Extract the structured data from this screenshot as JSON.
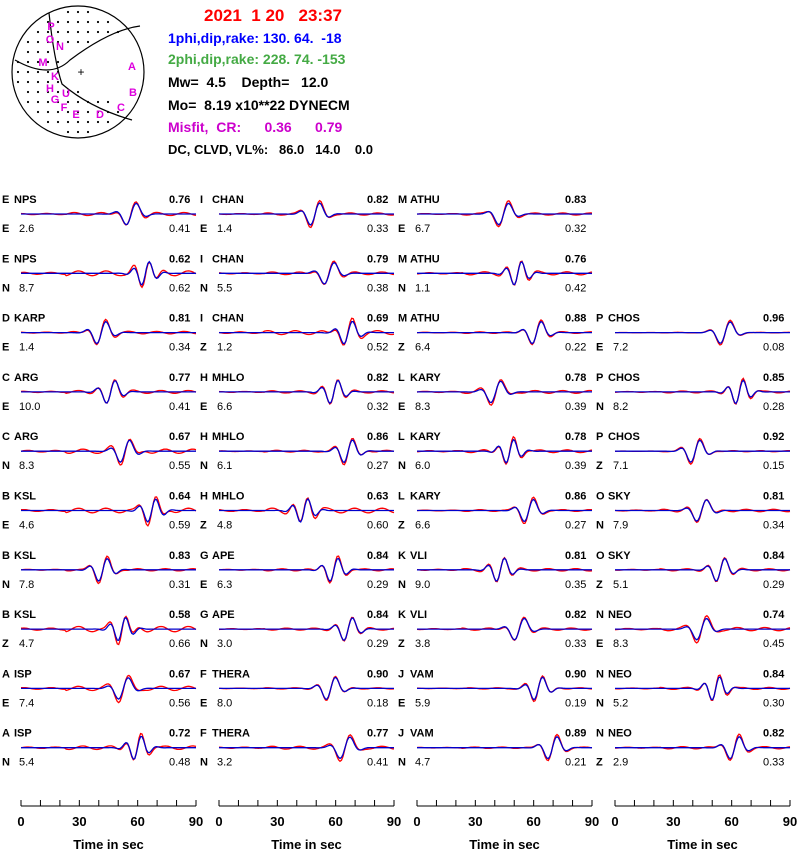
{
  "header": {
    "origin": "2021  1 20   23:37",
    "plane1": "1phi,dip,rake: 130. 64.  -18",
    "plane2": "2phi,dip,rake: 228. 74. -153",
    "mw_depth": "Mw=  4.5    Depth=   12.0",
    "mo": "Mo=  8.19 x10**22 DYNECM",
    "misfit": "Misfit,  CR:      0.36      0.79",
    "dc": "DC, CLVD, VL%:   86.0   14.0    0.0"
  },
  "colors": {
    "observed": "#ff0000",
    "synthetic": "#0000cc",
    "title": "#ff0000",
    "plane1": "#0000ff",
    "plane2": "#44aa44",
    "misfit": "#cc00cc",
    "station_letter": "#dd00dd"
  },
  "beachball": {
    "station_letters": [
      "P",
      "O",
      "N",
      "M",
      "K",
      "H",
      "G",
      "U",
      "F",
      "E",
      "D",
      "C",
      "B",
      "A"
    ]
  },
  "chart_data": {
    "type": "line",
    "description": "waveform fits, observed vs synthetic",
    "x_axis": {
      "label": "Time  in sec",
      "ticks": [
        0,
        30,
        60,
        90
      ],
      "range": [
        0,
        90
      ]
    },
    "columns": [
      [
        {
          "letter": "E",
          "station": "NPS",
          "comp": "E",
          "dist": "2.6",
          "cc": "0.76",
          "misfit": "0.41"
        },
        {
          "letter": "E",
          "station": "NPS",
          "comp": "N",
          "dist": "8.7",
          "cc": "0.62",
          "misfit": "0.62"
        },
        {
          "letter": "D",
          "station": "KARP",
          "comp": "E",
          "dist": "1.4",
          "cc": "0.81",
          "misfit": "0.34"
        },
        {
          "letter": "C",
          "station": "ARG",
          "comp": "E",
          "dist": "10.0",
          "cc": "0.77",
          "misfit": "0.41"
        },
        {
          "letter": "C",
          "station": "ARG",
          "comp": "N",
          "dist": "8.3",
          "cc": "0.67",
          "misfit": "0.55"
        },
        {
          "letter": "B",
          "station": "KSL",
          "comp": "E",
          "dist": "4.6",
          "cc": "0.64",
          "misfit": "0.59"
        },
        {
          "letter": "B",
          "station": "KSL",
          "comp": "N",
          "dist": "7.8",
          "cc": "0.83",
          "misfit": "0.31"
        },
        {
          "letter": "B",
          "station": "KSL",
          "comp": "Z",
          "dist": "4.7",
          "cc": "0.58",
          "misfit": "0.66"
        },
        {
          "letter": "A",
          "station": "ISP",
          "comp": "E",
          "dist": "7.4",
          "cc": "0.67",
          "misfit": "0.56"
        },
        {
          "letter": "A",
          "station": "ISP",
          "comp": "N",
          "dist": "5.4",
          "cc": "0.72",
          "misfit": "0.48"
        }
      ],
      [
        {
          "letter": "I",
          "station": "CHAN",
          "comp": "E",
          "dist": "1.4",
          "cc": "0.82",
          "misfit": "0.33"
        },
        {
          "letter": "I",
          "station": "CHAN",
          "comp": "N",
          "dist": "5.5",
          "cc": "0.79",
          "misfit": "0.38"
        },
        {
          "letter": "I",
          "station": "CHAN",
          "comp": "Z",
          "dist": "1.2",
          "cc": "0.69",
          "misfit": "0.52"
        },
        {
          "letter": "H",
          "station": "MHLO",
          "comp": "E",
          "dist": "6.6",
          "cc": "0.82",
          "misfit": "0.32"
        },
        {
          "letter": "H",
          "station": "MHLO",
          "comp": "N",
          "dist": "6.1",
          "cc": "0.86",
          "misfit": "0.27"
        },
        {
          "letter": "H",
          "station": "MHLO",
          "comp": "Z",
          "dist": "4.8",
          "cc": "0.63",
          "misfit": "0.60"
        },
        {
          "letter": "G",
          "station": "APE",
          "comp": "E",
          "dist": "6.3",
          "cc": "0.84",
          "misfit": "0.29"
        },
        {
          "letter": "G",
          "station": "APE",
          "comp": "N",
          "dist": "3.0",
          "cc": "0.84",
          "misfit": "0.29"
        },
        {
          "letter": "F",
          "station": "THERA",
          "comp": "E",
          "dist": "8.0",
          "cc": "0.90",
          "misfit": "0.18"
        },
        {
          "letter": "F",
          "station": "THERA",
          "comp": "N",
          "dist": "3.2",
          "cc": "0.77",
          "misfit": "0.41"
        }
      ],
      [
        {
          "letter": "M",
          "station": "ATHU",
          "comp": "E",
          "dist": "6.7",
          "cc": "0.83",
          "misfit": "0.32"
        },
        {
          "letter": "M",
          "station": "ATHU",
          "comp": "N",
          "dist": "1.1",
          "cc": "0.76",
          "misfit": "0.42"
        },
        {
          "letter": "M",
          "station": "ATHU",
          "comp": "Z",
          "dist": "6.4",
          "cc": "0.88",
          "misfit": "0.22"
        },
        {
          "letter": "L",
          "station": "KARY",
          "comp": "E",
          "dist": "8.3",
          "cc": "0.78",
          "misfit": "0.39"
        },
        {
          "letter": "L",
          "station": "KARY",
          "comp": "N",
          "dist": "6.0",
          "cc": "0.78",
          "misfit": "0.39"
        },
        {
          "letter": "L",
          "station": "KARY",
          "comp": "Z",
          "dist": "6.6",
          "cc": "0.86",
          "misfit": "0.27"
        },
        {
          "letter": "K",
          "station": "VLI",
          "comp": "N",
          "dist": "9.0",
          "cc": "0.81",
          "misfit": "0.35"
        },
        {
          "letter": "K",
          "station": "VLI",
          "comp": "Z",
          "dist": "3.8",
          "cc": "0.82",
          "misfit": "0.33"
        },
        {
          "letter": "J",
          "station": "VAM",
          "comp": "E",
          "dist": "5.9",
          "cc": "0.90",
          "misfit": "0.19"
        },
        {
          "letter": "J",
          "station": "VAM",
          "comp": "N",
          "dist": "4.7",
          "cc": "0.89",
          "misfit": "0.21"
        }
      ],
      [
        null,
        null,
        {
          "letter": "P",
          "station": "CHOS",
          "comp": "E",
          "dist": "7.2",
          "cc": "0.96",
          "misfit": "0.08"
        },
        {
          "letter": "P",
          "station": "CHOS",
          "comp": "N",
          "dist": "8.2",
          "cc": "0.85",
          "misfit": "0.28"
        },
        {
          "letter": "P",
          "station": "CHOS",
          "comp": "Z",
          "dist": "7.1",
          "cc": "0.92",
          "misfit": "0.15"
        },
        {
          "letter": "O",
          "station": "SKY",
          "comp": "N",
          "dist": "7.9",
          "cc": "0.81",
          "misfit": "0.34"
        },
        {
          "letter": "O",
          "station": "SKY",
          "comp": "Z",
          "dist": "5.1",
          "cc": "0.84",
          "misfit": "0.29"
        },
        {
          "letter": "N",
          "station": "NEO",
          "comp": "E",
          "dist": "8.3",
          "cc": "0.74",
          "misfit": "0.45"
        },
        {
          "letter": "N",
          "station": "NEO",
          "comp": "N",
          "dist": "5.2",
          "cc": "0.84",
          "misfit": "0.30"
        },
        {
          "letter": "N",
          "station": "NEO",
          "comp": "Z",
          "dist": "2.9",
          "cc": "0.82",
          "misfit": "0.33"
        }
      ]
    ]
  }
}
